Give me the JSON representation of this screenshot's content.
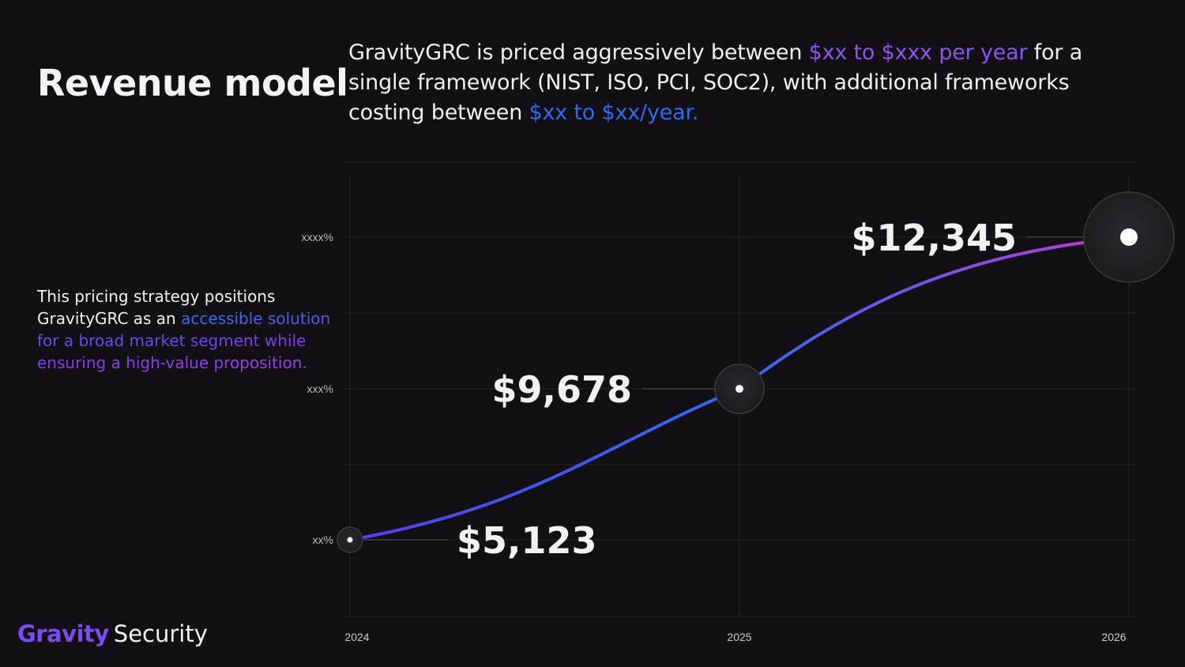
{
  "title": "Revenue model",
  "intro": {
    "part1": "GravityGRC is priced aggressively between ",
    "highlight1": "$xx to $xxx per year",
    "part2": " for a single framework (NIST, ISO, PCI, SOC2), with additional frameworks costing between ",
    "highlight2": "$xx to $xx/year."
  },
  "side_note": {
    "plain": "This pricing strategy positions GravityGRC as an ",
    "highlight": "accessible solution for a broad market segment while ensuring a high-value proposition."
  },
  "colors": {
    "background": "#121015",
    "line_start": "#5b3df0",
    "line_mid": "#2f6bf0",
    "line_end": "#c23bd8",
    "brand_purple": "#7b4cf2"
  },
  "chart_data": {
    "type": "line",
    "x": [
      "2024",
      "2025",
      "2026"
    ],
    "y_ticks": [
      "xx%",
      "xxx%",
      "xxxx%"
    ],
    "series": [
      {
        "values": [
          5123,
          9678,
          12345
        ],
        "labels": [
          "$5,123",
          "$9,678",
          "$12,345"
        ]
      }
    ],
    "grid": true
  },
  "brand": {
    "name_part1": "Gravity",
    "name_part2": "Security"
  }
}
